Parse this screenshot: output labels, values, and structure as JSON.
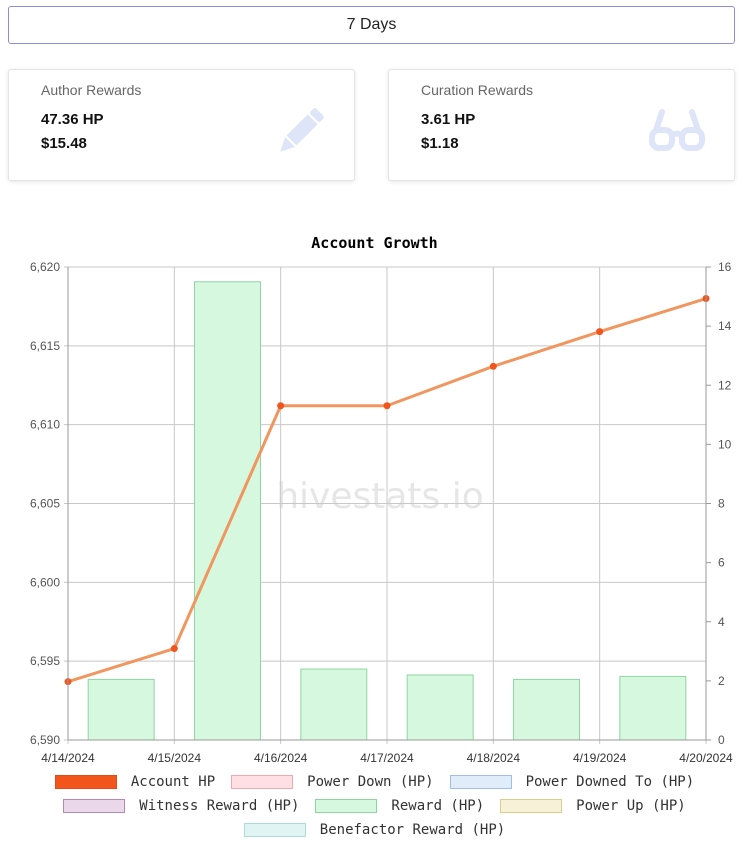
{
  "period_button": "7 Days",
  "cards": {
    "author": {
      "title": "Author Rewards",
      "hp": "47.36 HP",
      "usd": "$15.48",
      "icon": "pencil-icon"
    },
    "curation": {
      "title": "Curation Rewards",
      "hp": "3.61 HP",
      "usd": "$1.18",
      "icon": "glasses-icon"
    }
  },
  "watermark": "hivestats.io",
  "colors": {
    "accent": "#8c8fd6",
    "card_icon": "#dfe5f9",
    "line": "#f0965e",
    "point": "#f2541b",
    "bar_fill": "#d6f8df",
    "bar_stroke": "#8fd5a2"
  },
  "chart_data": {
    "type": "bar+line",
    "title": "Account Growth",
    "x": [
      "4/14/2024",
      "4/15/2024",
      "4/16/2024",
      "4/17/2024",
      "4/18/2024",
      "4/19/2024",
      "4/20/2024"
    ],
    "y_left": {
      "min": 6590,
      "max": 6620,
      "ticks": [
        "6,590",
        "6,595",
        "6,600",
        "6,605",
        "6,610",
        "6,615",
        "6,620"
      ]
    },
    "y_right": {
      "min": 0,
      "max": 16,
      "ticks": [
        "0",
        "2",
        "4",
        "6",
        "8",
        "10",
        "12",
        "14",
        "16"
      ]
    },
    "series": [
      {
        "name": "Account HP",
        "type": "line",
        "axis": "left",
        "color": "#f2541b",
        "x": [
          "4/14/2024",
          "4/15/2024",
          "4/16/2024",
          "4/17/2024",
          "4/18/2024",
          "4/19/2024",
          "4/20/2024"
        ],
        "values": [
          6593.7,
          6595.8,
          6611.2,
          6611.2,
          6613.7,
          6615.9,
          6618.0
        ]
      },
      {
        "name": "Reward (HP)",
        "type": "bar",
        "axis": "right",
        "color": "#d6f8df",
        "x": [
          "4/15/2024",
          "4/16/2024",
          "4/17/2024",
          "4/18/2024",
          "4/19/2024",
          "4/20/2024"
        ],
        "values": [
          2.05,
          15.5,
          2.4,
          2.2,
          2.05,
          2.15
        ]
      }
    ],
    "legend": [
      {
        "label": "Account HP",
        "fill": "#f2541b",
        "stroke": "#e24a18"
      },
      {
        "label": "Power Down (HP)",
        "fill": "#ffdfe3",
        "stroke": "#f2a7b3"
      },
      {
        "label": "Power Downed To (HP)",
        "fill": "#e1ecfb",
        "stroke": "#9dbdea"
      },
      {
        "label": "Witness Reward (HP)",
        "fill": "#ead7ea",
        "stroke": "#b48ab5"
      },
      {
        "label": "Reward (HP)",
        "fill": "#d6f8df",
        "stroke": "#8fd5a2"
      },
      {
        "label": "Power Up (HP)",
        "fill": "#f7f2d7",
        "stroke": "#d8cf8e"
      },
      {
        "label": "Benefactor Reward (HP)",
        "fill": "#dff4f3",
        "stroke": "#a8ddd8"
      }
    ],
    "legend_position": "bottom",
    "grid": true
  }
}
